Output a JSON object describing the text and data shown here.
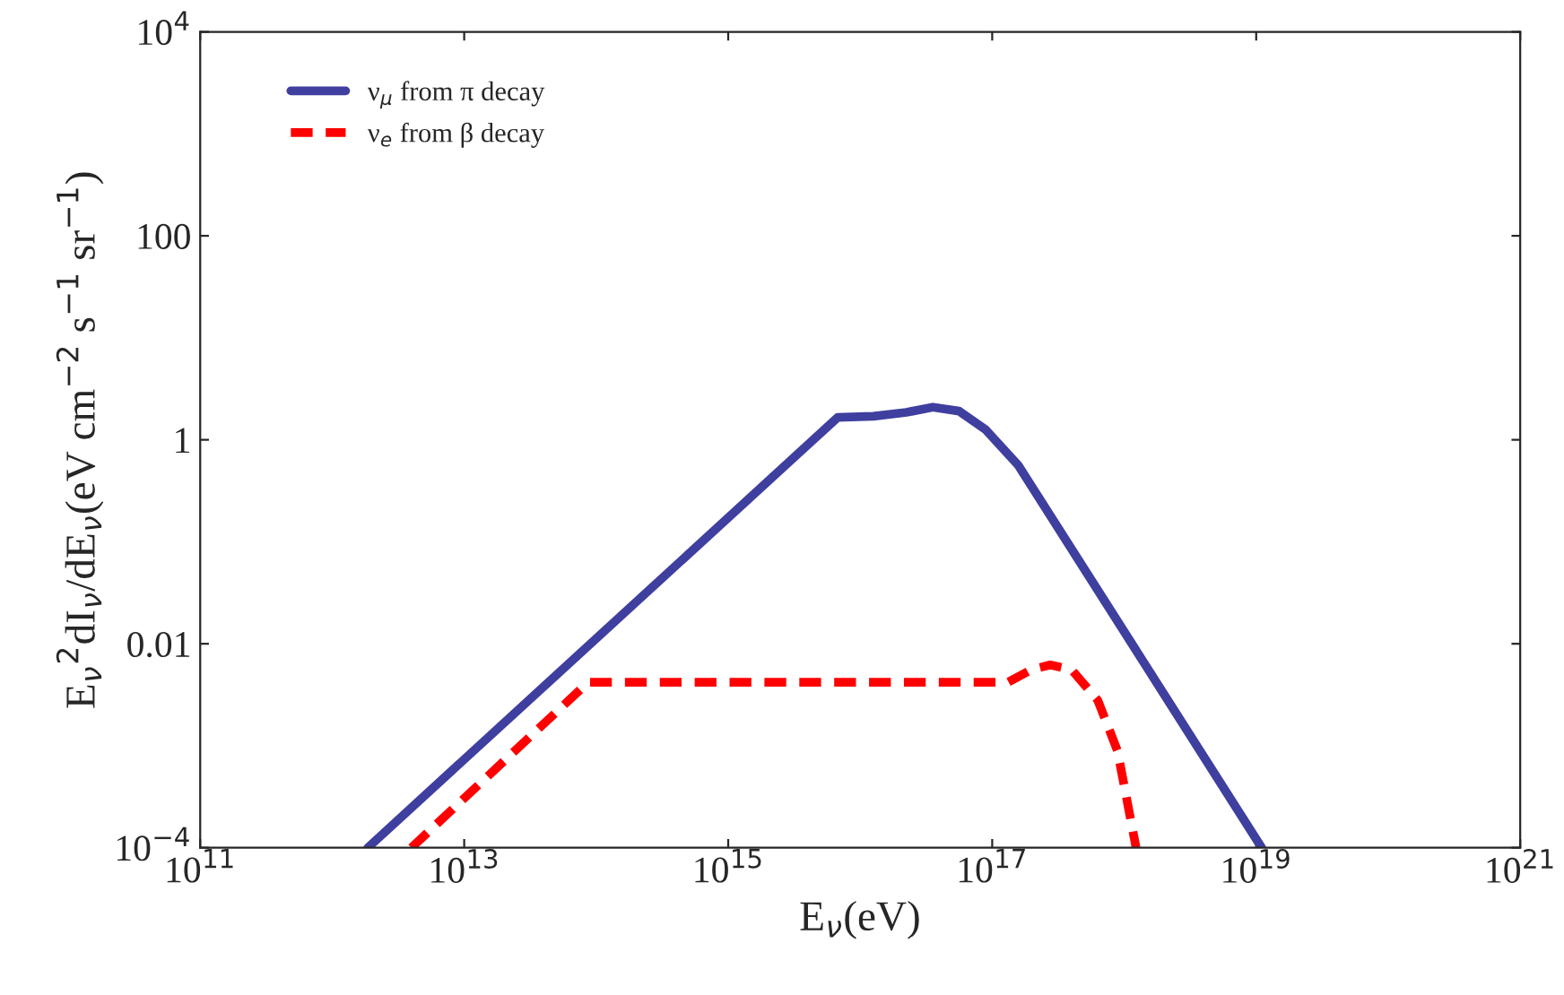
{
  "chart_data": {
    "type": "line",
    "xlabel": "E$_{ν}$(eV)",
    "ylabel": "E$_{ν}$$^{2}$dI$_{ν}$/dE$_{ν}$(eV cm$^{−2}$ s$^{−1}$ sr$^{−1}$)",
    "log": "xy",
    "legend": "top left",
    "grid": false,
    "xlim": [
      100000000000.0,
      1e+21
    ],
    "ylim": [
      0.0001,
      10000.0
    ],
    "xticks": [
      {
        "value": 100000000000.0,
        "label": "10$^{11}$"
      },
      {
        "value": 10000000000000.0,
        "label": "10$^{13}$"
      },
      {
        "value": 1000000000000000.0,
        "label": "10$^{15}$"
      },
      {
        "value": 1e+17,
        "label": "10$^{17}$"
      },
      {
        "value": 1e+19,
        "label": "10$^{19}$"
      },
      {
        "value": 1e+21,
        "label": "10$^{21}$"
      }
    ],
    "yticks": [
      {
        "value": 0.0001,
        "label": "10$^{−4}$"
      },
      0.01,
      1,
      100,
      {
        "value": 10000.0,
        "label": "10$^{4}$"
      }
    ],
    "series": [
      {
        "name": "ν$_{μ}$ from π decay",
        "color": "#3f3f9f",
        "line_style": "solid",
        "x": [
          1860000000000.0,
          6760000000000000.0,
          1.26e+16,
          2.24e+16,
          3.55e+16,
          5.62e+16,
          8.91e+16,
          1.58e+17,
          1.1e+19
        ],
        "values": [
          0.0001,
          1.66,
          1.7,
          1.86,
          2.09,
          1.91,
          1.26,
          0.56,
          0.0001
        ]
      },
      {
        "name": "ν$_{e}$ from β decay",
        "color": "#ff0000",
        "line_style": "dashed",
        "x": [
          3980000000000.0,
          87000000000000.0,
          1.32e+17,
          2e+17,
          2.75e+17,
          3.98e+17,
          6.3e+17,
          8.9e+17,
          1.23e+18
        ],
        "values": [
          0.0001,
          0.0042,
          0.0042,
          0.0056,
          0.0062,
          0.0056,
          0.0028,
          0.00089,
          0.0001
        ]
      }
    ]
  }
}
